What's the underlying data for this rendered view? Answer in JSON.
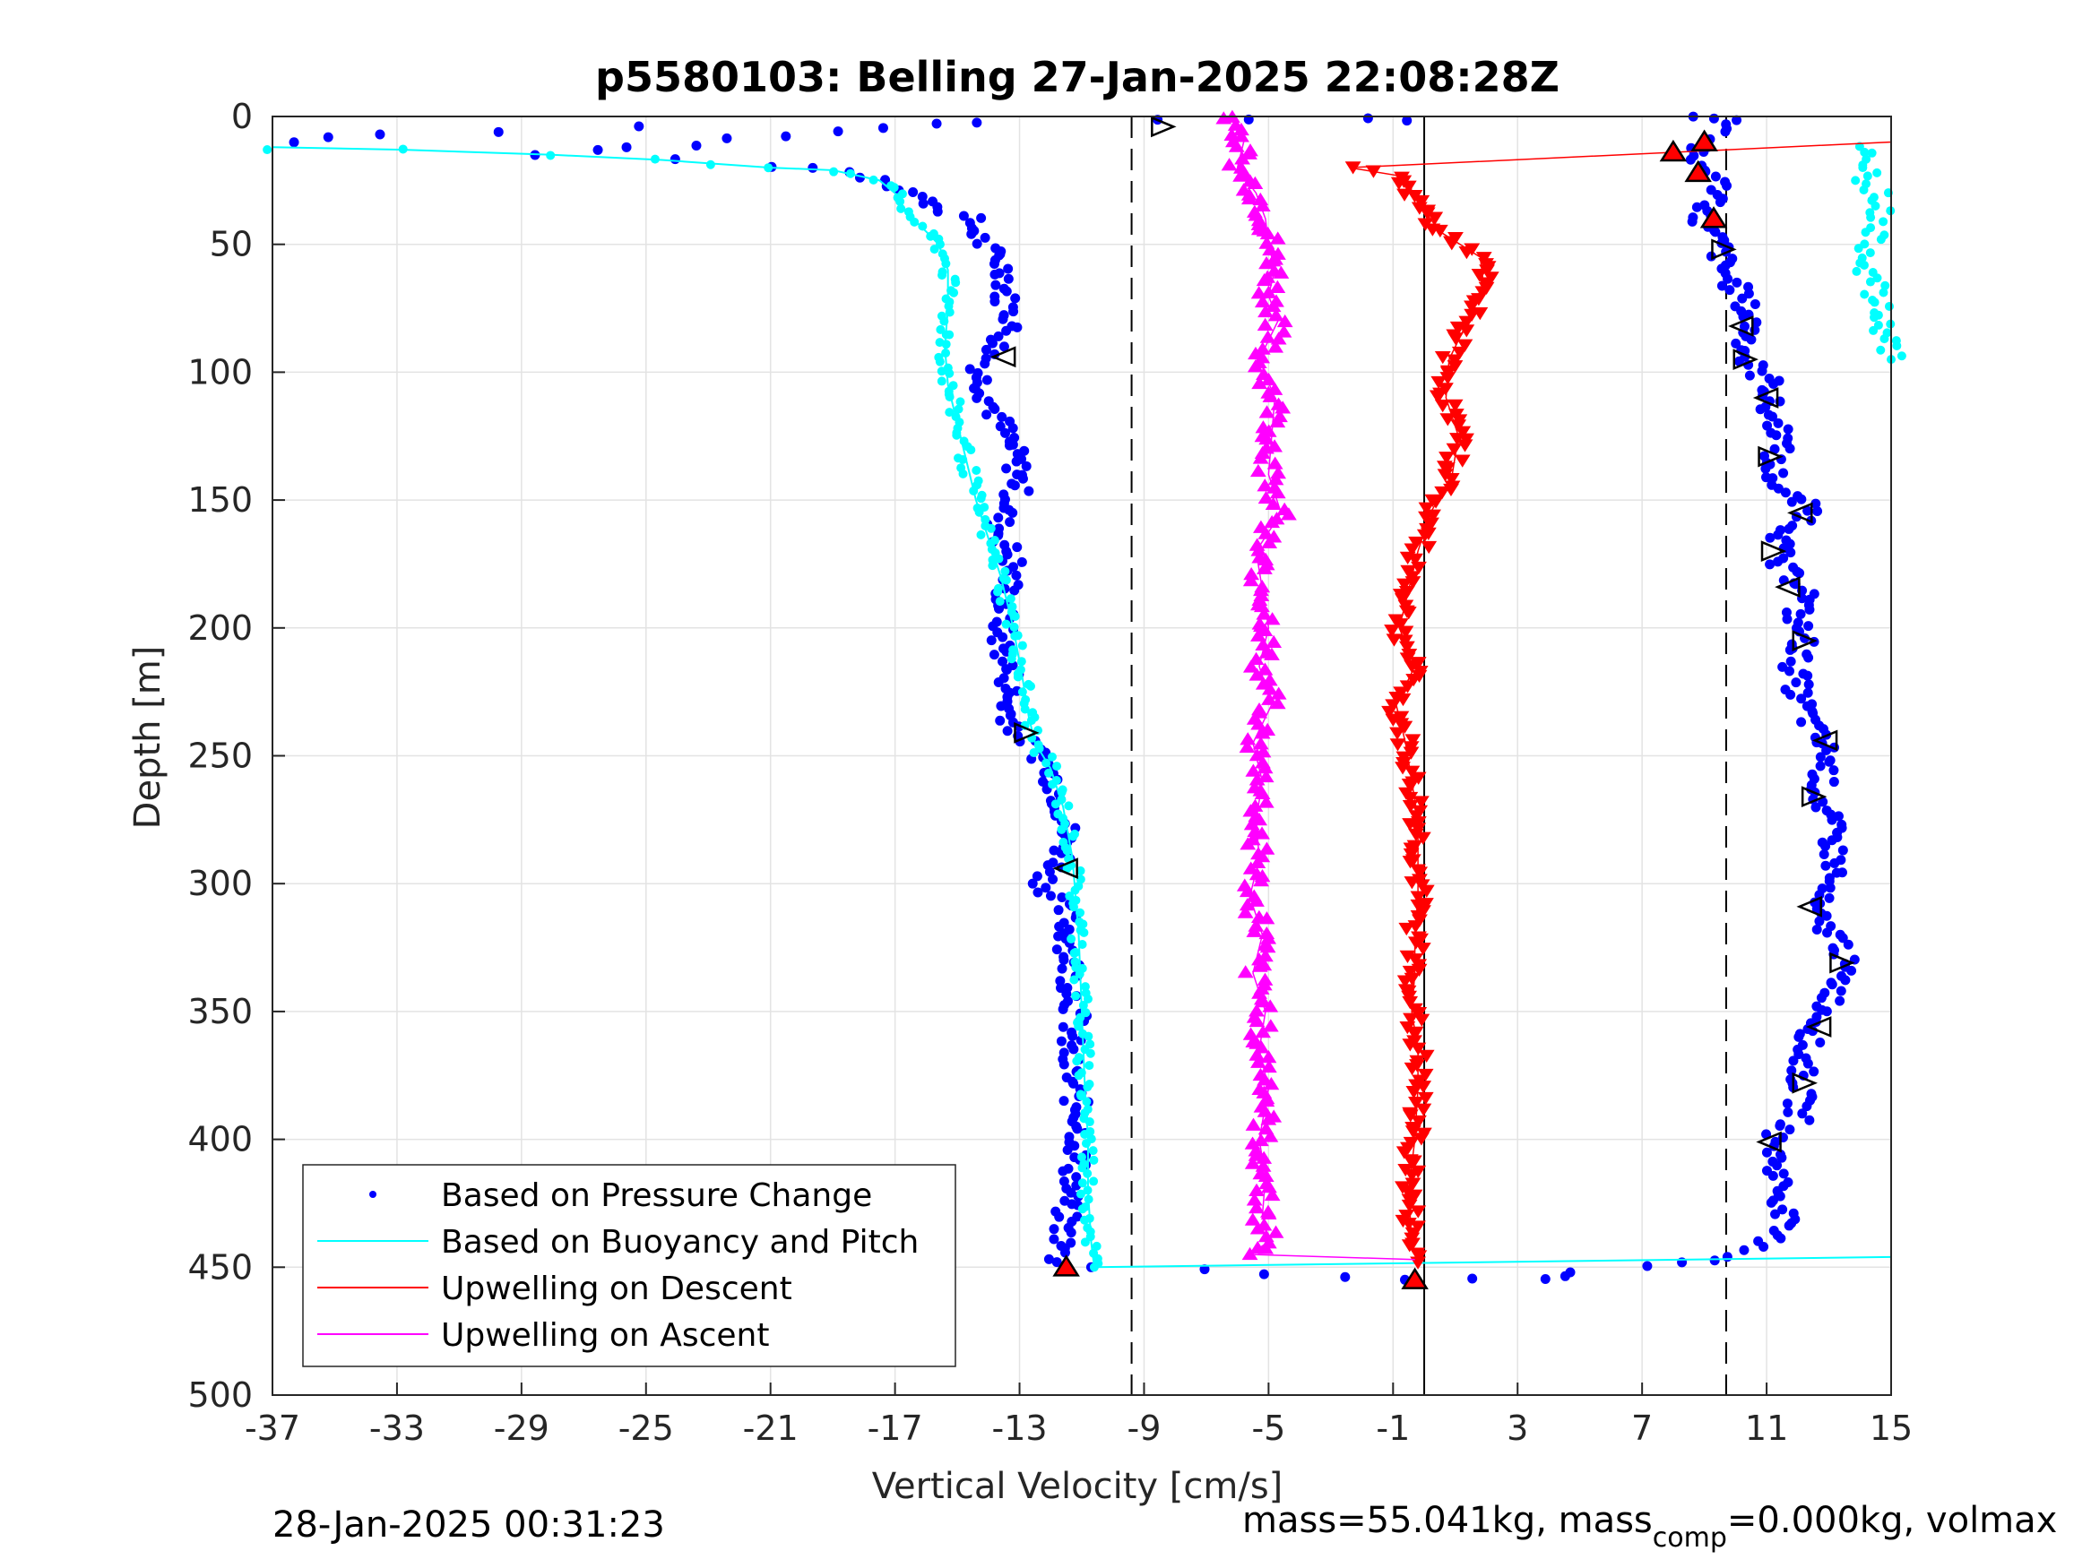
{
  "chart_data": {
    "type": "scatter",
    "title": "p5580103: Belling 27-Jan-2025 22:08:28Z",
    "xlabel": "Vertical Velocity [cm/s]",
    "ylabel": "Depth [m]",
    "xlim": [
      -37,
      15
    ],
    "ylim": [
      0,
      500
    ],
    "y_reversed": true,
    "xticks": [
      "-37",
      "-33",
      "-29",
      "-25",
      "-21",
      "-17",
      "-13",
      "-9",
      "-5",
      "-1",
      "3",
      "7",
      "11",
      "15"
    ],
    "yticks": [
      "0",
      "50",
      "100",
      "150",
      "200",
      "250",
      "300",
      "350",
      "400",
      "450",
      "500"
    ],
    "grid": true,
    "legend_position": "bottom-left",
    "reference_lines": [
      {
        "style": "dashed",
        "x": -9.4
      },
      {
        "style": "dashed",
        "x": 9.7
      },
      {
        "style": "solid",
        "x": 0
      }
    ],
    "series": [
      {
        "name": "Based on Pressure Change",
        "color": "#0000ff",
        "marker": "dot",
        "note_desc_profile": [
          [
            -36.3,
            10
          ],
          [
            -33.5,
            7
          ],
          [
            -25.3,
            4
          ],
          [
            -14.2,
            2
          ],
          [
            -28.5,
            15
          ],
          [
            -24.2,
            17
          ],
          [
            -20.7,
            19
          ],
          [
            -18.5,
            22
          ],
          [
            -17.2,
            25
          ],
          [
            -16.4,
            30
          ],
          [
            -15.6,
            36
          ],
          [
            -14.6,
            40
          ],
          [
            -14.3,
            48
          ],
          [
            -13.7,
            55
          ],
          [
            -13.4,
            62
          ],
          [
            -13.5,
            70
          ],
          [
            -13.2,
            80
          ],
          [
            -13.8,
            92
          ],
          [
            -14.3,
            100
          ],
          [
            -14.0,
            110
          ],
          [
            -13.4,
            125
          ],
          [
            -13.1,
            135
          ],
          [
            -13.0,
            145
          ],
          [
            -13.7,
            160
          ],
          [
            -13.2,
            175
          ],
          [
            -13.5,
            190
          ],
          [
            -13.6,
            205
          ],
          [
            -13.3,
            220
          ],
          [
            -13.4,
            232
          ],
          [
            -13.0,
            242
          ],
          [
            -12.3,
            250
          ],
          [
            -11.8,
            262
          ],
          [
            -11.5,
            275
          ],
          [
            -11.6,
            290
          ],
          [
            -12.2,
            300
          ],
          [
            -11.5,
            312
          ],
          [
            -11.4,
            325
          ],
          [
            -11.3,
            340
          ],
          [
            -11.2,
            352
          ],
          [
            -11.5,
            365
          ],
          [
            -11.3,
            380
          ],
          [
            -11.0,
            395
          ],
          [
            -11.2,
            410
          ],
          [
            -11.5,
            425
          ],
          [
            -11.6,
            440
          ],
          [
            -11.8,
            448
          ]
        ],
        "note_asc_profile": [
          [
            -8.7,
            2
          ],
          [
            -5.4,
            1
          ],
          [
            -1.5,
            1
          ],
          [
            -0.5,
            1
          ],
          [
            8.6,
            0
          ],
          [
            9.1,
            1
          ],
          [
            10.2,
            2
          ],
          [
            8.4,
            16
          ],
          [
            9.3,
            22
          ],
          [
            9.6,
            30
          ],
          [
            8.8,
            40
          ],
          [
            9.5,
            50
          ],
          [
            9.6,
            60
          ],
          [
            10.2,
            70
          ],
          [
            10.5,
            82
          ],
          [
            10.3,
            95
          ],
          [
            11.2,
            105
          ],
          [
            11.0,
            115
          ],
          [
            11.6,
            125
          ],
          [
            11.1,
            135
          ],
          [
            11.4,
            145
          ],
          [
            12.5,
            155
          ],
          [
            11.5,
            165
          ],
          [
            11.3,
            175
          ],
          [
            12.4,
            185
          ],
          [
            11.9,
            195
          ],
          [
            12.2,
            205
          ],
          [
            11.9,
            215
          ],
          [
            12.0,
            225
          ],
          [
            12.5,
            240
          ],
          [
            13.0,
            250
          ],
          [
            12.7,
            265
          ],
          [
            13.1,
            280
          ],
          [
            13.2,
            295
          ],
          [
            12.4,
            310
          ],
          [
            13.5,
            325
          ],
          [
            13.3,
            340
          ],
          [
            12.8,
            352
          ],
          [
            12.2,
            365
          ],
          [
            12.1,
            380
          ],
          [
            12.0,
            392
          ],
          [
            11.2,
            400
          ],
          [
            11.4,
            415
          ],
          [
            11.6,
            430
          ],
          [
            11.0,
            442
          ],
          [
            9.4,
            447
          ],
          [
            7.3,
            450
          ],
          [
            5.0,
            452
          ],
          [
            3.8,
            455
          ],
          [
            1.3,
            455
          ],
          [
            -0.5,
            455
          ],
          [
            -2.5,
            454
          ],
          [
            -5.4,
            452
          ],
          [
            -7.3,
            451
          ],
          [
            -10.7,
            450
          ]
        ]
      },
      {
        "name": "Based on Buoyancy and Pitch",
        "color": "#00ffff",
        "marker": "line-dot",
        "x": [
          -37.0,
          -32.8,
          -28.0,
          -24.5,
          -21.0,
          -19.0,
          -17.5,
          -17.0,
          -16.6,
          -16.0,
          -15.6,
          -15.3,
          -15.3,
          -15.4,
          -15.3,
          -15.0,
          -14.7,
          -14.4,
          -14.0,
          -13.6,
          -13.2,
          -12.9,
          -12.7,
          -12.5,
          -12.0,
          -11.6,
          -11.3,
          -11.1,
          -11.0,
          -10.9,
          -10.8,
          -10.8,
          -10.7,
          -10.6
        ],
        "y": [
          12,
          13,
          15,
          17,
          20,
          21,
          25,
          30,
          38,
          45,
          50,
          60,
          75,
          90,
          105,
          120,
          135,
          150,
          165,
          180,
          200,
          220,
          235,
          245,
          255,
          270,
          290,
          320,
          350,
          380,
          400,
          420,
          440,
          450
        ]
      },
      {
        "name": "Upwelling on Descent",
        "color": "#ff0000",
        "marker": "triangle-down",
        "x": [
          15.0,
          15.0,
          -2.4,
          -0.9,
          -0.1,
          0.5,
          1.8,
          1.9,
          1.4,
          0.8,
          0.7,
          1.1,
          0.9,
          0.2,
          -0.2,
          -0.5,
          -0.8,
          -0.3,
          -0.9,
          -0.6,
          -0.4,
          -0.2,
          -0.2,
          -0.2,
          -0.3,
          -0.3,
          -0.4,
          -0.2,
          -0.2,
          -0.3,
          -0.5,
          -0.4,
          -0.2
        ],
        "y": [
          3,
          10,
          20,
          23,
          35,
          45,
          55,
          65,
          80,
          95,
          110,
          125,
          140,
          155,
          170,
          185,
          200,
          215,
          230,
          245,
          260,
          275,
          290,
          305,
          320,
          335,
          350,
          365,
          380,
          400,
          420,
          440,
          448
        ]
      },
      {
        "name": "Upwelling on Ascent",
        "color": "#ff00ff",
        "marker": "triangle-up",
        "x": [
          -6.2,
          -5.8,
          -6.0,
          -5.4,
          -5.1,
          -5.0,
          -4.8,
          -5.0,
          -4.7,
          -5.3,
          -4.8,
          -4.9,
          -5.0,
          -4.6,
          -5.4,
          -5.2,
          -5.0,
          -5.3,
          -4.9,
          -5.5,
          -5.2,
          -5.4,
          -5.3,
          -5.6,
          -5.2,
          -5.5,
          -5.1,
          -5.3,
          -5.0,
          -5.3,
          -5.1,
          -5.2,
          -5.0,
          -5.6,
          -0.3
        ],
        "y": [
          0,
          10,
          20,
          30,
          40,
          50,
          60,
          70,
          80,
          95,
          110,
          125,
          140,
          155,
          170,
          185,
          200,
          215,
          230,
          245,
          260,
          275,
          290,
          305,
          320,
          335,
          350,
          365,
          380,
          400,
          415,
          430,
          440,
          445,
          447
        ]
      }
    ],
    "red_markers": [
      [
        8.0,
        14
      ],
      [
        9.0,
        10
      ],
      [
        8.8,
        22
      ],
      [
        9.3,
        40
      ],
      [
        -11.5,
        450
      ],
      [
        -0.3,
        455
      ]
    ],
    "open_markers": [
      [
        -8.4,
        4
      ],
      [
        -13.5,
        94
      ],
      [
        -12.8,
        241
      ],
      [
        -11.5,
        294
      ],
      [
        9.6,
        52
      ],
      [
        10.2,
        82
      ],
      [
        10.3,
        95
      ],
      [
        11.0,
        110
      ],
      [
        11.1,
        133
      ],
      [
        12.1,
        155
      ],
      [
        11.2,
        170
      ],
      [
        11.7,
        184
      ],
      [
        12.2,
        205
      ],
      [
        12.9,
        244
      ],
      [
        12.5,
        266
      ],
      [
        12.4,
        309
      ],
      [
        13.4,
        331
      ],
      [
        12.7,
        356
      ],
      [
        12.2,
        378
      ],
      [
        11.1,
        401
      ]
    ],
    "cyan_extra": {
      "x": [
        13.8,
        14.2,
        14.4,
        14.2,
        14.6,
        14.7,
        14.6,
        14.5,
        14.3,
        14.3,
        14.2,
        14.5,
        14.4,
        14.6,
        14.8,
        15.0,
        15.0
      ],
      "y": [
        12,
        15,
        20,
        25,
        30,
        35,
        40,
        45,
        50,
        55,
        60,
        65,
        70,
        75,
        85,
        90,
        95
      ]
    },
    "footer_left": "28-Jan-2025 00:31:23",
    "footer_right": "mass=55.041kg, mass",
    "footer_right_sub": "comp",
    "footer_right_tail": "=0.000kg, volmax"
  }
}
